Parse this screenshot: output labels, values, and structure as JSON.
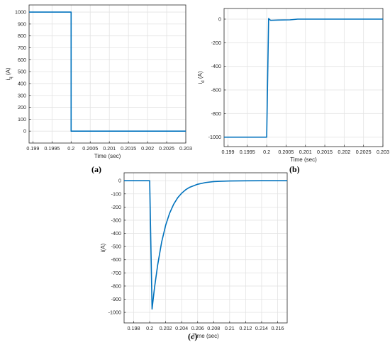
{
  "captions": [
    "(a)",
    "(b)",
    "(c)"
  ],
  "colors": {
    "line": "#0072BD",
    "grid": "#e3e3e3",
    "axis": "#262626",
    "tick_text": "#262626"
  },
  "chart_data": [
    {
      "type": "line",
      "title": "",
      "xlabel": "Time (sec)",
      "ylabel": "i_q (A)",
      "ylabel_main": "i",
      "ylabel_sub": "q",
      "ylabel_unit": "(A)",
      "xlim": [
        0.1989,
        0.203
      ],
      "ylim": [
        -100,
        1060
      ],
      "xticks": [
        0.199,
        0.1995,
        0.2,
        0.2005,
        0.201,
        0.2015,
        0.202,
        0.2025,
        0.203
      ],
      "xtick_labels": [
        "0.199",
        "0.1995",
        "0.2",
        "0.2005",
        "0.201",
        "0.2015",
        "0.202",
        "0.2025",
        "0.203"
      ],
      "yticks": [
        0,
        100,
        200,
        300,
        400,
        500,
        600,
        700,
        800,
        900,
        1000
      ],
      "ytick_labels": [
        "0",
        "100",
        "200",
        "300",
        "400",
        "500",
        "600",
        "700",
        "800",
        "900",
        "1000"
      ],
      "grid": true,
      "series": [
        {
          "x": [
            0.1989,
            0.2,
            0.2,
            0.203
          ],
          "y": [
            1000,
            1000,
            0,
            0
          ]
        }
      ]
    },
    {
      "type": "line",
      "title": "",
      "xlabel": "Time (sec)",
      "ylabel": "i_d (A)",
      "ylabel_main": "i",
      "ylabel_sub": "d",
      "ylabel_unit": "(A)",
      "xlim": [
        0.1989,
        0.203
      ],
      "ylim": [
        -1080,
        90
      ],
      "xticks": [
        0.199,
        0.1995,
        0.2,
        0.2005,
        0.201,
        0.2015,
        0.202,
        0.2025,
        0.203
      ],
      "xtick_labels": [
        "0.199",
        "0.1995",
        "0.2",
        "0.2005",
        "0.201",
        "0.2015",
        "0.202",
        "0.2025",
        "0.203"
      ],
      "yticks": [
        -1000,
        -800,
        -600,
        -400,
        -200,
        0
      ],
      "ytick_labels": [
        "-1000",
        "-800",
        "-600",
        "-400",
        "-200",
        "0"
      ],
      "grid": true,
      "series": [
        {
          "x": [
            0.1989,
            0.2,
            0.20005,
            0.2001,
            0.2003,
            0.2006,
            0.2008,
            0.201,
            0.203
          ],
          "y": [
            -1000,
            -1000,
            5,
            -10,
            -8,
            -6,
            0,
            0,
            0
          ]
        }
      ]
    },
    {
      "type": "line",
      "title": "",
      "xlabel": "Time (sec)",
      "ylabel": "i(A)",
      "ylabel_main": "i(A)",
      "ylabel_sub": "",
      "ylabel_unit": "",
      "xlim": [
        0.1968,
        0.2172
      ],
      "ylim": [
        -1080,
        60
      ],
      "xticks": [
        0.198,
        0.2,
        0.202,
        0.204,
        0.206,
        0.208,
        0.21,
        0.212,
        0.214,
        0.216
      ],
      "xtick_labels": [
        "0.198",
        "0.2",
        "0.202",
        "0.204",
        "0.206",
        "0.208",
        "0.21",
        "0.212",
        "0.214",
        "0.216"
      ],
      "yticks": [
        -1000,
        -900,
        -800,
        -700,
        -600,
        -500,
        -400,
        -300,
        -200,
        -100,
        0
      ],
      "ytick_labels": [
        "-1000",
        "-900",
        "-800",
        "-700",
        "-600",
        "-500",
        "-400",
        "-300",
        "-200",
        "-100",
        "0"
      ],
      "grid": true,
      "series": [
        {
          "x": [
            0.1968,
            0.2,
            0.2,
            0.2003,
            0.2006,
            0.201,
            0.2015,
            0.202,
            0.2025,
            0.203,
            0.2035,
            0.204,
            0.2045,
            0.205,
            0.206,
            0.207,
            0.208,
            0.209,
            0.21,
            0.212,
            0.214,
            0.2172
          ],
          "y": [
            0,
            0,
            0,
            -975,
            -815,
            -640,
            -465,
            -338,
            -246,
            -179,
            -130,
            -95,
            -69,
            -50,
            -27,
            -14,
            -7,
            -4,
            -2,
            -1,
            0,
            0
          ]
        }
      ]
    }
  ]
}
